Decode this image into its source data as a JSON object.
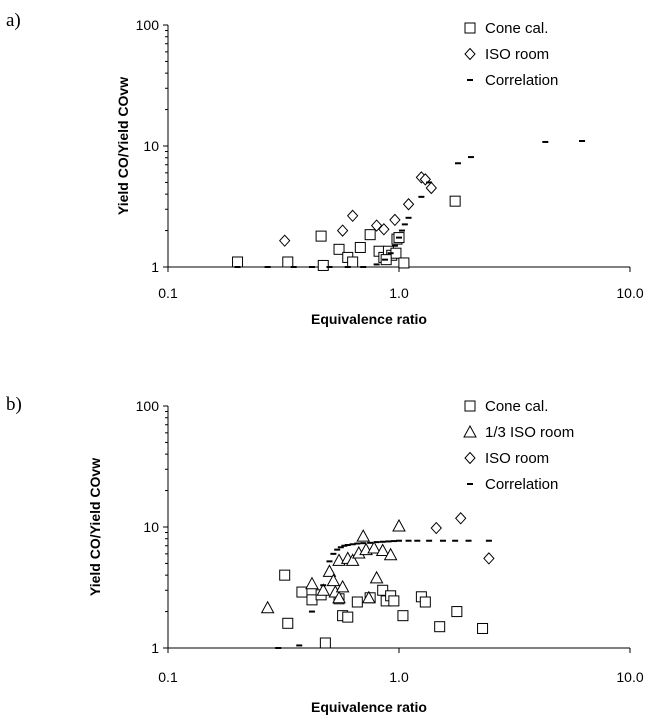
{
  "chart_data": [
    {
      "type": "scatter",
      "panel_label": "a)",
      "xlabel": "Equivalence ratio",
      "ylabel": "Yield CO/Yield COvw",
      "x_scale": "log",
      "y_scale": "log",
      "xlim": [
        0.1,
        10.0
      ],
      "ylim": [
        1,
        100
      ],
      "x_ticks": [
        0.1,
        1.0,
        10.0
      ],
      "x_tick_labels": [
        "0.1",
        "1.0",
        "10.0"
      ],
      "y_ticks": [
        1,
        10,
        100
      ],
      "y_tick_labels": [
        "1",
        "10",
        "100"
      ],
      "grid": false,
      "legend_position": "top-right",
      "series": [
        {
          "name": "Cone cal.",
          "marker": "square",
          "points": [
            [
              0.2,
              1.1
            ],
            [
              0.33,
              1.1
            ],
            [
              0.47,
              1.03
            ],
            [
              0.46,
              1.8
            ],
            [
              0.55,
              1.4
            ],
            [
              0.6,
              1.2
            ],
            [
              0.63,
              1.1
            ],
            [
              0.68,
              1.45
            ],
            [
              0.75,
              1.85
            ],
            [
              0.82,
              1.35
            ],
            [
              0.86,
              1.2
            ],
            [
              0.9,
              1.35
            ],
            [
              0.93,
              1.25
            ],
            [
              0.97,
              1.3
            ],
            [
              0.98,
              1.7
            ],
            [
              1.0,
              1.75
            ],
            [
              1.05,
              1.08
            ],
            [
              1.75,
              3.5
            ],
            [
              0.88,
              1.15
            ]
          ]
        },
        {
          "name": "ISO room",
          "marker": "diamond",
          "points": [
            [
              0.32,
              1.65
            ],
            [
              0.57,
              2.0
            ],
            [
              0.63,
              2.65
            ],
            [
              0.8,
              2.2
            ],
            [
              0.86,
              2.05
            ],
            [
              0.96,
              2.45
            ],
            [
              1.1,
              3.3
            ],
            [
              1.25,
              5.5
            ],
            [
              1.3,
              5.3
            ],
            [
              1.38,
              4.5
            ]
          ]
        },
        {
          "name": "Correlation",
          "marker": "dash",
          "points": [
            [
              0.2,
              1.0
            ],
            [
              0.27,
              1.0
            ],
            [
              0.35,
              1.0
            ],
            [
              0.42,
              1.0
            ],
            [
              0.5,
              1.0
            ],
            [
              0.6,
              1.0
            ],
            [
              0.7,
              1.0
            ],
            [
              0.8,
              1.05
            ],
            [
              0.87,
              1.15
            ],
            [
              0.92,
              1.3
            ],
            [
              0.96,
              1.5
            ],
            [
              1.0,
              1.75
            ],
            [
              1.03,
              2.0
            ],
            [
              1.06,
              2.25
            ],
            [
              1.1,
              2.55
            ],
            [
              1.25,
              3.8
            ],
            [
              1.35,
              5.0
            ],
            [
              1.8,
              7.2
            ],
            [
              2.05,
              8.1
            ],
            [
              4.3,
              10.8
            ],
            [
              6.2,
              11.0
            ]
          ]
        }
      ]
    },
    {
      "type": "scatter",
      "panel_label": "b)",
      "xlabel": "Equivalence ratio",
      "ylabel": "Yield CO/Yield COvw",
      "x_scale": "log",
      "y_scale": "log",
      "xlim": [
        0.1,
        10.0
      ],
      "ylim": [
        1,
        100
      ],
      "x_ticks": [
        0.1,
        1.0,
        10.0
      ],
      "x_tick_labels": [
        "0.1",
        "1.0",
        "10.0"
      ],
      "y_ticks": [
        1,
        10,
        100
      ],
      "y_tick_labels": [
        "1",
        "10",
        "100"
      ],
      "grid": false,
      "legend_position": "top-right",
      "series": [
        {
          "name": "Cone cal.",
          "marker": "square",
          "points": [
            [
              0.32,
              4.0
            ],
            [
              0.33,
              1.6
            ],
            [
              0.38,
              2.9
            ],
            [
              0.42,
              2.5
            ],
            [
              0.46,
              2.75
            ],
            [
              0.48,
              1.1
            ],
            [
              0.55,
              2.55
            ],
            [
              0.57,
              1.85
            ],
            [
              0.6,
              1.8
            ],
            [
              0.66,
              2.4
            ],
            [
              0.75,
              2.6
            ],
            [
              0.85,
              3.0
            ],
            [
              0.88,
              2.45
            ],
            [
              0.92,
              2.7
            ],
            [
              0.95,
              2.45
            ],
            [
              1.04,
              1.85
            ],
            [
              1.25,
              2.65
            ],
            [
              1.3,
              2.4
            ],
            [
              1.5,
              1.5
            ],
            [
              1.78,
              2.0
            ],
            [
              2.3,
              1.45
            ]
          ]
        },
        {
          "name": "1/3 ISO room",
          "marker": "triangle",
          "points": [
            [
              0.27,
              2.15
            ],
            [
              0.42,
              3.4
            ],
            [
              0.47,
              3.0
            ],
            [
              0.5,
              4.3
            ],
            [
              0.52,
              3.6
            ],
            [
              0.53,
              2.9
            ],
            [
              0.55,
              2.6
            ],
            [
              0.55,
              5.3
            ],
            [
              0.57,
              3.2
            ],
            [
              0.6,
              5.5
            ],
            [
              0.63,
              5.3
            ],
            [
              0.67,
              6.1
            ],
            [
              0.7,
              8.4
            ],
            [
              0.72,
              6.5
            ],
            [
              0.74,
              2.6
            ],
            [
              0.78,
              6.7
            ],
            [
              0.8,
              3.8
            ],
            [
              0.85,
              6.4
            ],
            [
              0.92,
              5.9
            ],
            [
              1.0,
              10.2
            ]
          ]
        },
        {
          "name": "ISO room",
          "marker": "diamond",
          "points": [
            [
              1.45,
              9.8
            ],
            [
              1.85,
              11.8
            ],
            [
              2.45,
              5.5
            ]
          ]
        },
        {
          "name": "Correlation",
          "marker": "dash",
          "points": [
            [
              0.3,
              1.0
            ],
            [
              0.37,
              1.05
            ],
            [
              0.42,
              2.0
            ],
            [
              0.47,
              3.3
            ],
            [
              0.5,
              5.2
            ],
            [
              0.52,
              6.0
            ],
            [
              0.54,
              6.5
            ],
            [
              0.56,
              6.8
            ],
            [
              0.58,
              7.0
            ],
            [
              0.6,
              7.1
            ],
            [
              0.63,
              7.2
            ],
            [
              0.66,
              7.3
            ],
            [
              0.7,
              7.35
            ],
            [
              0.75,
              7.4
            ],
            [
              0.8,
              7.5
            ],
            [
              0.85,
              7.55
            ],
            [
              0.9,
              7.6
            ],
            [
              0.95,
              7.65
            ],
            [
              1.0,
              7.7
            ],
            [
              1.1,
              7.7
            ],
            [
              1.2,
              7.7
            ],
            [
              1.35,
              7.7
            ],
            [
              1.55,
              7.7
            ],
            [
              1.75,
              7.7
            ],
            [
              2.0,
              7.7
            ],
            [
              2.45,
              7.7
            ]
          ]
        }
      ]
    }
  ]
}
